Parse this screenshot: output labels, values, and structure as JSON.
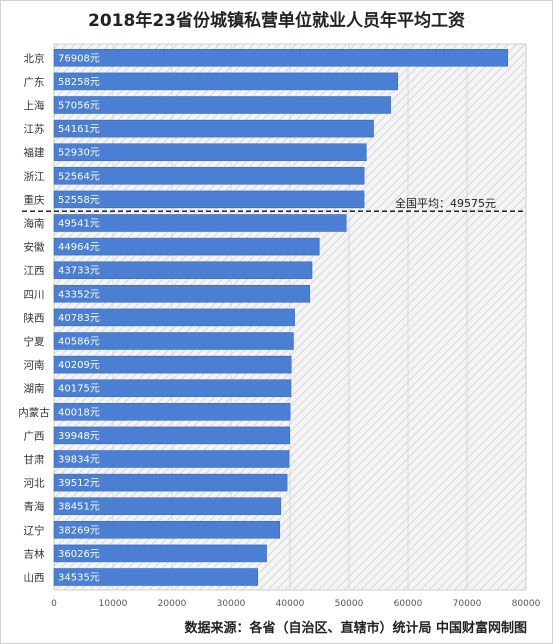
{
  "title": "2018年23省份城镇私营单位就业人员年平均工资",
  "source": "数据来源：各省（自治区、直辖市）统计局  中国财富网制图",
  "chart_data": {
    "type": "bar",
    "orientation": "horizontal",
    "title": "2018年23省份城镇私营单位就业人员年平均工资",
    "categories": [
      "北京",
      "广东",
      "上海",
      "江苏",
      "福建",
      "浙江",
      "重庆",
      "海南",
      "安徽",
      "江西",
      "四川",
      "陕西",
      "宁夏",
      "河南",
      "湖南",
      "内蒙古",
      "广西",
      "甘肃",
      "河北",
      "青海",
      "辽宁",
      "吉林",
      "山西"
    ],
    "values": [
      76908,
      58258,
      57056,
      54161,
      52930,
      52564,
      52558,
      49541,
      44964,
      43733,
      43352,
      40783,
      40586,
      40209,
      40175,
      40018,
      39948,
      39834,
      39512,
      38451,
      38269,
      36026,
      34535
    ],
    "value_labels": [
      "76908元",
      "58258元",
      "57056元",
      "54161元",
      "52930元",
      "52564元",
      "52558元",
      "49541元",
      "44964元",
      "43733元",
      "43352元",
      "40783元",
      "40586元",
      "40209元",
      "40175元",
      "40018元",
      "39948元",
      "39834元",
      "39512元",
      "38451元",
      "38269元",
      "36026元",
      "34535元"
    ],
    "xlim": [
      0,
      80000
    ],
    "x_ticks": [
      0,
      10000,
      20000,
      30000,
      40000,
      50000,
      60000,
      70000,
      80000
    ],
    "x_tick_labels": [
      "0",
      "10000",
      "20000",
      "30000",
      "40000",
      "50000",
      "60000",
      "70000",
      "80000"
    ],
    "average": {
      "value": 49575,
      "label": "全国平均：49575元"
    },
    "bar_color": "#4a7fd4",
    "average_line_style": "dashed",
    "grid": true
  }
}
